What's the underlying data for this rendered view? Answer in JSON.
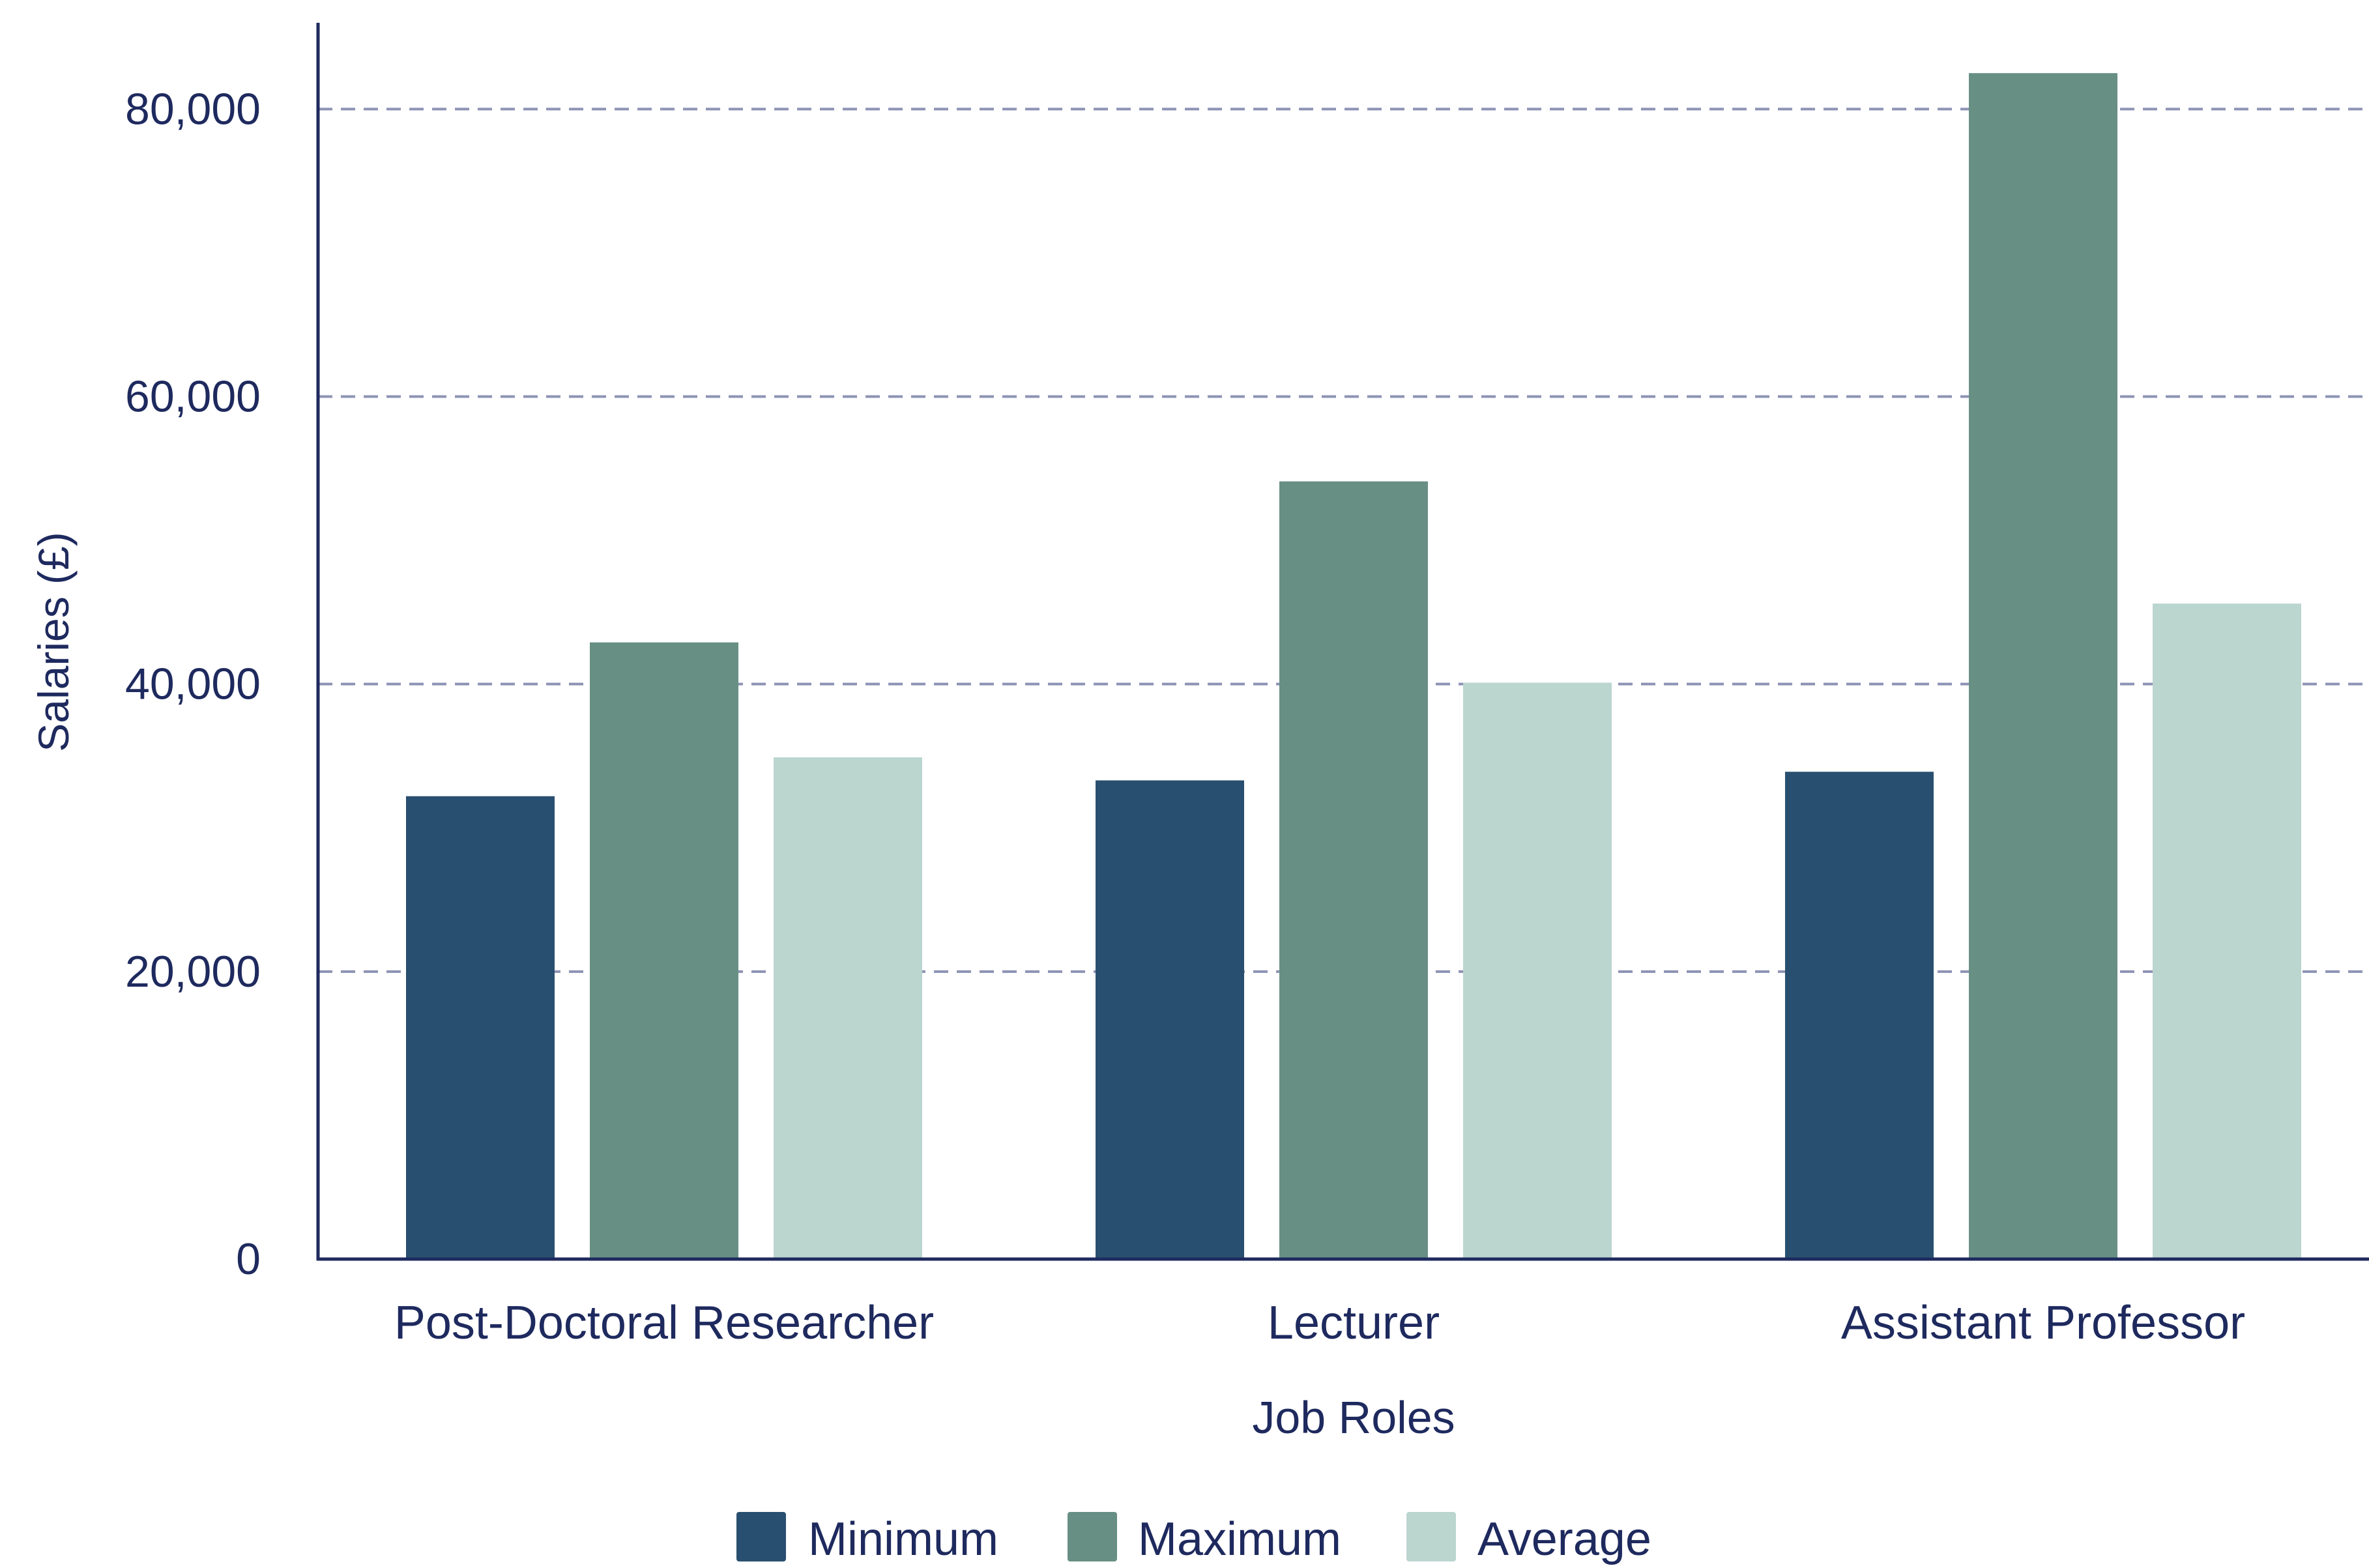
{
  "chart_data": {
    "type": "bar",
    "categories": [
      "Post-Doctoral Researcher",
      "Lecturer",
      "Assistant Professor"
    ],
    "series": [
      {
        "name": "Minimum",
        "values": [
          32200,
          33300,
          33900
        ]
      },
      {
        "name": "Maximum",
        "values": [
          42900,
          54100,
          82500
        ]
      },
      {
        "name": "Average",
        "values": [
          34900,
          40100,
          45600
        ]
      }
    ],
    "xlabel": "Job Roles",
    "ylabel": "Salaries (£)",
    "ylim": [
      0,
      86000
    ],
    "yticks": [
      0,
      20000,
      40000,
      60000,
      80000
    ],
    "ytick_labels": [
      "0",
      "20,000",
      "40,000",
      "60,000",
      "80,000"
    ],
    "grid": "horizontal dashed",
    "legend_position": "bottom-center",
    "colors": {
      "Minimum": "#284f6f",
      "Maximum": "#678f84",
      "Average": "#bbd5cf",
      "axis": "#1e2a5e",
      "grid": "#8d93b5",
      "text": "#1e2a5e"
    }
  }
}
